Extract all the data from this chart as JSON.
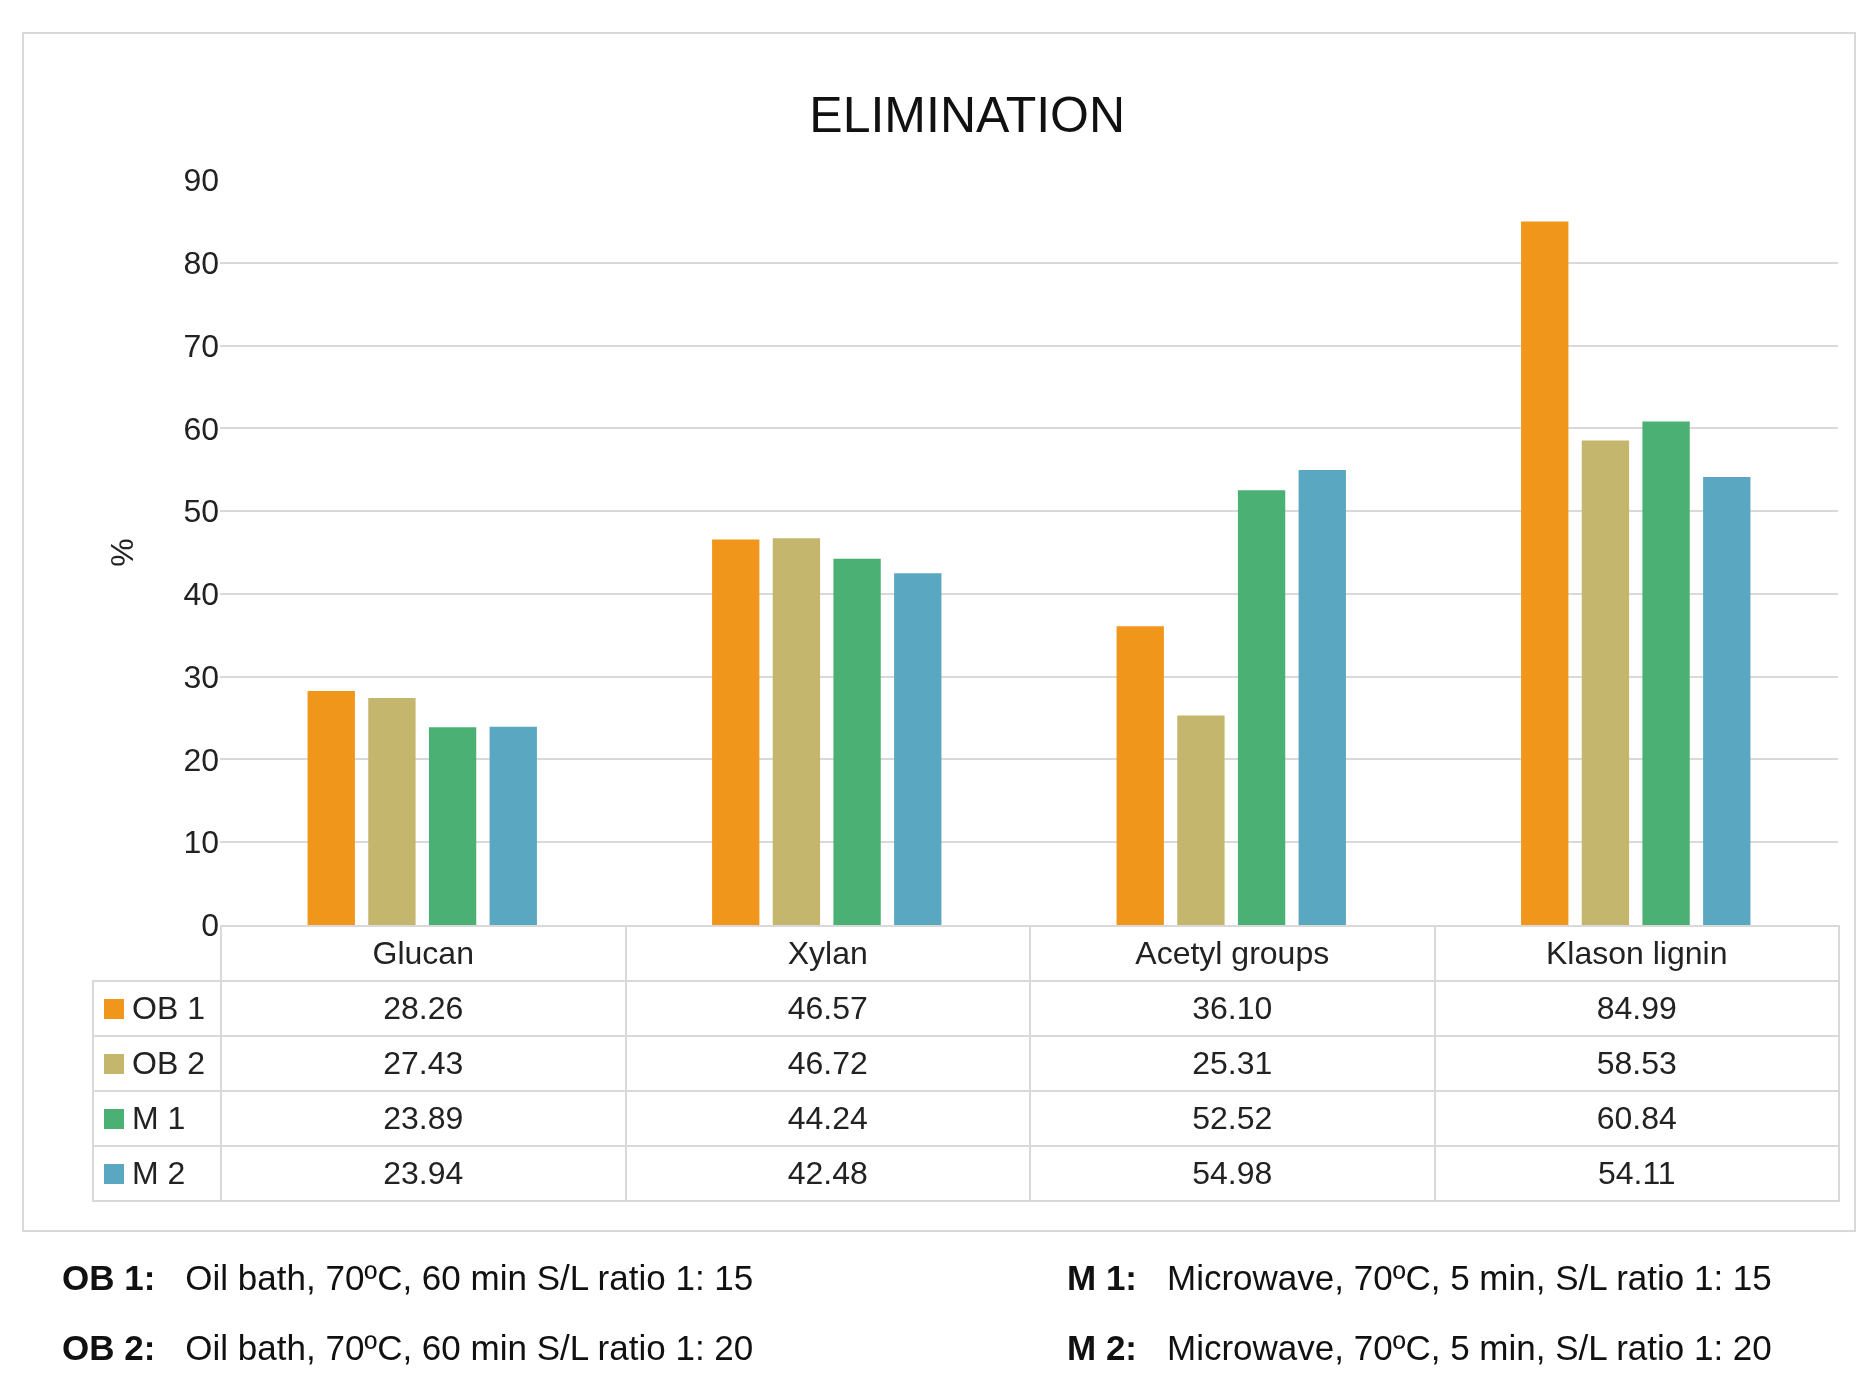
{
  "chart_data": {
    "type": "bar",
    "title": "ELIMINATION",
    "ylabel": "%",
    "categories": [
      "Glucan",
      "Xylan",
      "Acetyl groups",
      "Klason lignin"
    ],
    "series": [
      {
        "name": "OB 1",
        "color": "#f0961a",
        "values": [
          28.26,
          46.57,
          36.1,
          84.99
        ],
        "value_labels": [
          "28.26",
          "46.57",
          "36.10",
          "84.99"
        ]
      },
      {
        "name": "OB 2",
        "color": "#c4b66c",
        "values": [
          27.43,
          46.72,
          25.31,
          58.53
        ],
        "value_labels": [
          "27.43",
          "46.72",
          "25.31",
          "58.53"
        ]
      },
      {
        "name": "M 1",
        "color": "#4bb073",
        "values": [
          23.89,
          44.24,
          52.52,
          60.84
        ],
        "value_labels": [
          "23.89",
          "44.24",
          "52.52",
          "60.84"
        ]
      },
      {
        "name": "M 2",
        "color": "#5aa7c1",
        "values": [
          23.94,
          42.48,
          54.98,
          54.11
        ],
        "value_labels": [
          "23.94",
          "42.48",
          "54.98",
          "54.11"
        ]
      }
    ],
    "legend": "bottom left",
    "ylim": [
      0,
      90
    ],
    "yticks": [
      0,
      10,
      20,
      30,
      40,
      50,
      60,
      70,
      80,
      90
    ],
    "grid": "y",
    "annotations": [
      "OB 1: Oil bath, 70ºC, 60 min S/L ratio 1: 15",
      "M 1: Microwave, 70ºC, 5 min, S/L ratio 1: 15",
      "OB 2: Oil bath, 70ºC, 60 min S/L ratio 1: 20",
      "M 2: Microwave, 70ºC, 5 min, S/L ratio 1: 20"
    ]
  }
}
